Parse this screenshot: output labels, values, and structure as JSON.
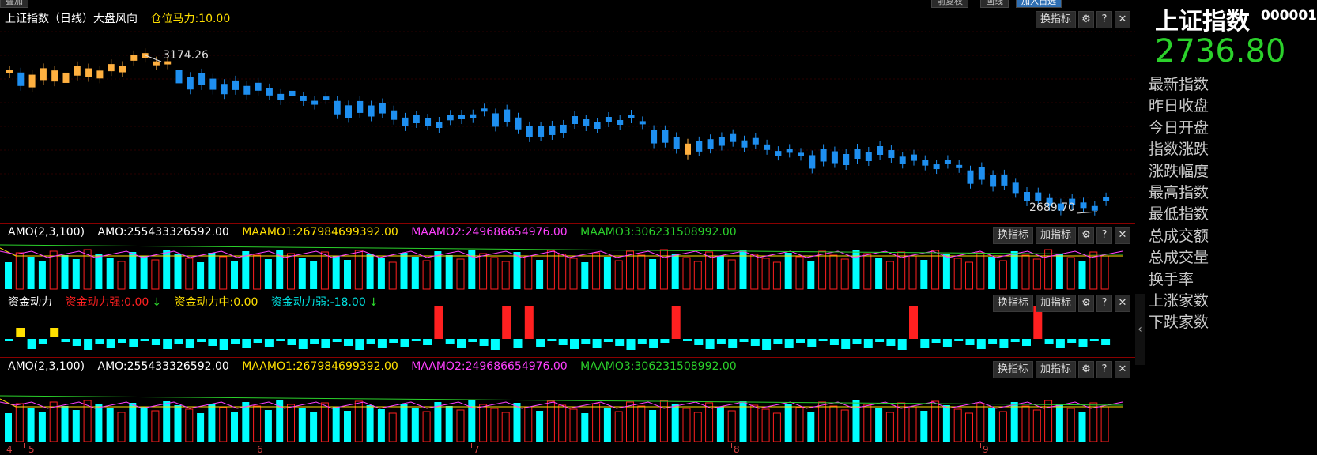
{
  "topbar": {
    "btn1": "叠加",
    "btn2": "前复权",
    "btn3": "画线",
    "btn4": "加入自选"
  },
  "main_pane": {
    "title": "上证指数（日线）大盘风向",
    "position_label": "仓位马力:10.00",
    "high_label": "3174.26",
    "low_label": "2689.70",
    "tool": "换指标"
  },
  "amo_pane": {
    "title": "AMO(2,3,100)",
    "amo": "AMO:255433326592.00",
    "ma1": "MAAMO1:267984699392.00",
    "ma2": "MAAMO2:249686654976.00",
    "ma3": "MAAMO3:306231508992.00",
    "tool_change": "换指标",
    "tool_add": "加指标"
  },
  "fund_pane": {
    "title": "资金动力",
    "strong": "资金动力强:0.00",
    "mid": "资金动力中:0.00",
    "weak": "资金动力弱:-18.00",
    "tool_change": "换指标",
    "tool_add": "加指标"
  },
  "amo2_pane": {
    "title": "AMO(2,3,100)",
    "amo": "AMO:255433326592.00",
    "ma1": "MAAMO1:267984699392.00",
    "ma2": "MAAMO2:249686654976.00",
    "ma3": "MAAMO3:306231508992.00",
    "tool_change": "换指标",
    "tool_add": "加指标"
  },
  "toolbar_icons": {
    "gear": "⚙",
    "help": "?",
    "close": "✕"
  },
  "xaxis": {
    "labels": [
      "4",
      "5",
      "6",
      "7",
      "8",
      "9"
    ]
  },
  "sidebar": {
    "name": "上证指数",
    "code": "000001",
    "price": "2736.80",
    "fields": [
      "最新指数",
      "昨日收盘",
      "今日开盘",
      "指数涨跌",
      "涨跌幅度",
      "最高指数",
      "最低指数",
      "总成交额",
      "总成交量",
      "换手率",
      "上涨家数",
      "下跌家数"
    ]
  },
  "colors": {
    "up": "#ffb040",
    "down": "#1e8ff0",
    "cyan": "#00ffff",
    "red": "#ff2020",
    "yellow": "#ffe000",
    "green": "#2bd12b",
    "magenta": "#ff40ff"
  },
  "collapse_icon": "‹"
}
